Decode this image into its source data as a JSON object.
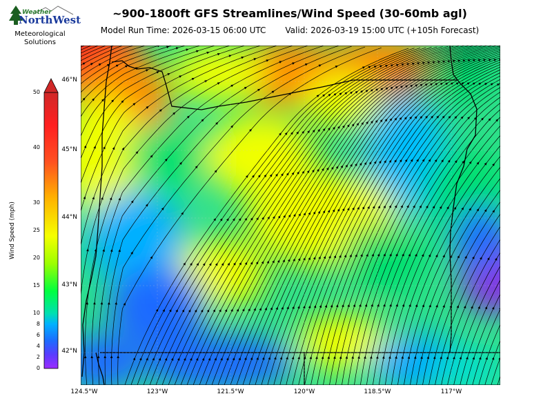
{
  "header": {
    "title": "~900-1800ft GFS Streamlines/Wind Speed (30-60mb agl)",
    "model_run": "Model Run Time: 2026-03-15 06:00 UTC",
    "valid": "Valid: 2026-03-19 15:00 UTC  (+105h Forecast)"
  },
  "logo": {
    "weather": "Weather",
    "northwest": "NorthWest",
    "line1": "Meteorological",
    "line2": "Solutions"
  },
  "colorbar": {
    "label": "Wind Speed (mph)",
    "ticks": [
      "0",
      "2",
      "4",
      "6",
      "8",
      "10",
      "15",
      "20",
      "25",
      "30",
      "40",
      "50"
    ]
  },
  "map": {
    "lat_labels": [
      "46°N",
      "45°N",
      "44°N",
      "43°N",
      "42°N"
    ],
    "lon_labels": [
      "124.5°W",
      "123°W",
      "121.5°W",
      "120°W",
      "118.5°W",
      "117°W"
    ],
    "colors": {
      "calm": "#8a2be2",
      "light": "#1e6bff",
      "moderate": "#00e070",
      "fresh": "#f0ff00",
      "strong": "#ff8c00",
      "high": "#ff2020"
    }
  }
}
